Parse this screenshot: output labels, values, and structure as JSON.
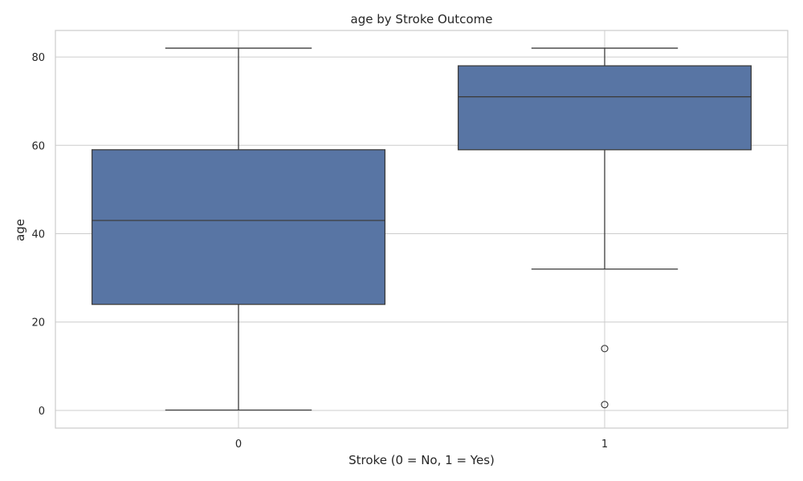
{
  "chart_data": {
    "type": "box",
    "title": "age by Stroke Outcome",
    "xlabel": "Stroke (0 = No, 1 = Yes)",
    "ylabel": "age",
    "categories": [
      "0",
      "1"
    ],
    "ylim": [
      -4,
      86
    ],
    "yticks": [
      0,
      20,
      40,
      60,
      80
    ],
    "grid": true,
    "boxes": [
      {
        "category": "0",
        "whisker_low": 0.08,
        "q1": 24,
        "median": 43,
        "q3": 59,
        "whisker_high": 82,
        "outliers": []
      },
      {
        "category": "1",
        "whisker_low": 32,
        "q1": 59,
        "median": 71,
        "q3": 78,
        "whisker_high": 82,
        "outliers": [
          14,
          1.32
        ]
      }
    ],
    "colors": {
      "box_fill": "#5875a4",
      "line": "#3d3d3d",
      "grid": "#cccccc",
      "frame": "#cccccc"
    }
  }
}
